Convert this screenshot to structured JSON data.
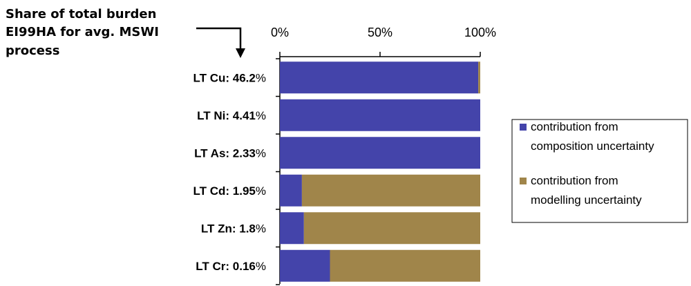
{
  "annotation": {
    "line1": "Share of total burden",
    "line2": "EI99HA for avg. MSWI",
    "line3": "process"
  },
  "colors": {
    "composition": "#4444aa",
    "modelling": "#a0854a",
    "axis": "#000000"
  },
  "chart_data": {
    "type": "bar",
    "orientation": "horizontal",
    "stacked": true,
    "categories": [
      {
        "name": "LT Cu",
        "share": "46.2"
      },
      {
        "name": "LT Ni",
        "share": "4.41"
      },
      {
        "name": "LT As",
        "share": "2.33"
      },
      {
        "name": "LT Cd",
        "share": "1.95"
      },
      {
        "name": "LT Zn",
        "share": "1.8"
      },
      {
        "name": "LT Cr",
        "share": "0.16"
      }
    ],
    "series": [
      {
        "name": "contribution from composition uncertainty",
        "legend_lines": [
          "contribution from",
          "composition uncertainty"
        ],
        "values": [
          99,
          100,
          100,
          11,
          12,
          25
        ]
      },
      {
        "name": "contribution from modelling uncertainty",
        "legend_lines": [
          "contribution from",
          "modelling uncertainty"
        ],
        "values": [
          1,
          0,
          0,
          89,
          88,
          75
        ]
      }
    ],
    "xlim": [
      0,
      100
    ],
    "xticks": [
      "0%",
      "50%",
      "100%"
    ],
    "xtick_values": [
      0,
      50,
      100
    ],
    "axis_position": "top",
    "grid": false,
    "legend_position": "right"
  }
}
